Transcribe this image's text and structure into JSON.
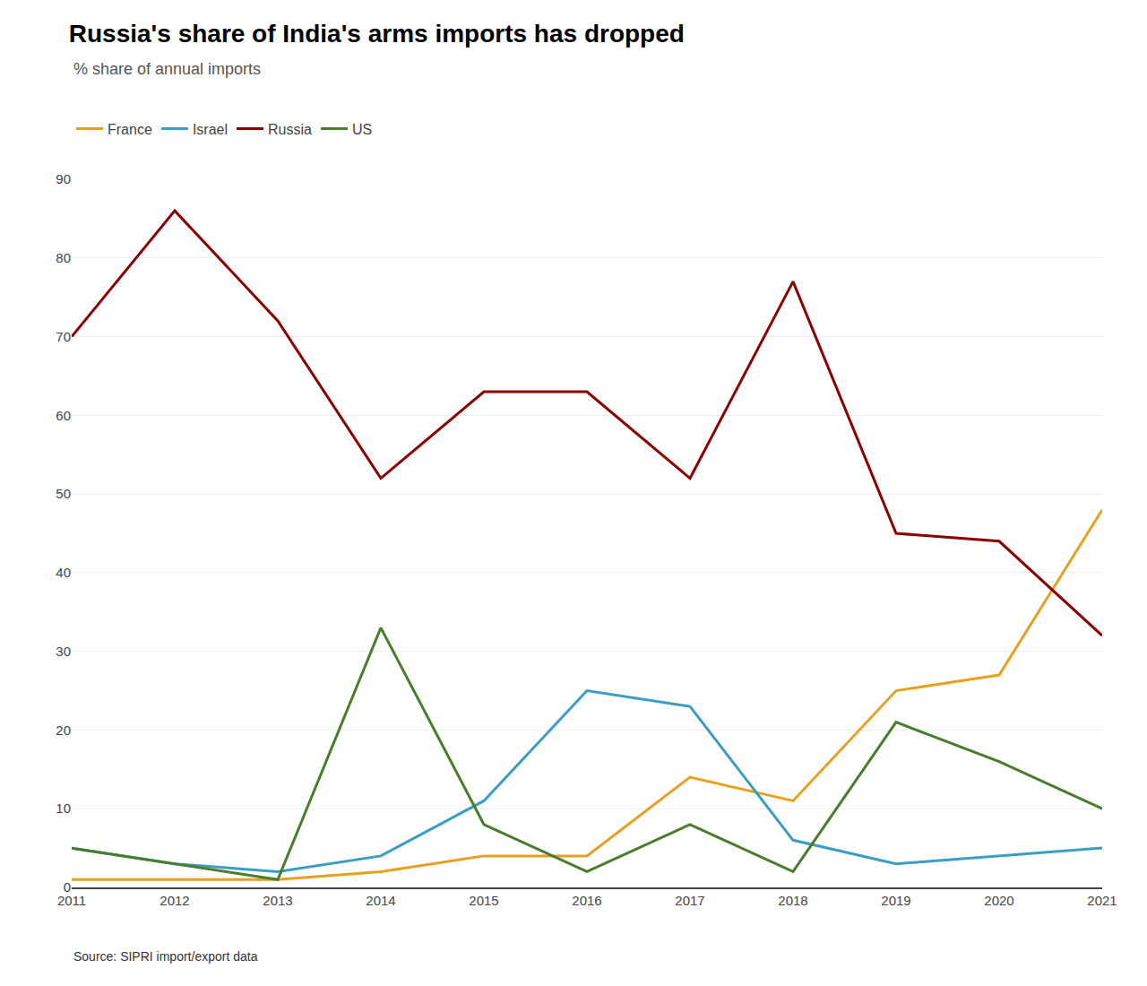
{
  "chart_data": {
    "type": "line",
    "title": "Russia's share of India's arms imports has dropped",
    "subtitle": "% share of annual imports",
    "annotations": [
      "Source: SIPRI import/export data"
    ],
    "x": [
      2011,
      2012,
      2013,
      2014,
      2015,
      2016,
      2017,
      2018,
      2019,
      2020,
      2021
    ],
    "series": [
      {
        "name": "France",
        "color": "#e8a020",
        "values": [
          1,
          1,
          1,
          2,
          4,
          4,
          14,
          11,
          25,
          27,
          48
        ]
      },
      {
        "name": "Israel",
        "color": "#3a9ec2",
        "values": [
          5,
          3,
          2,
          4,
          11,
          25,
          23,
          6,
          3,
          4,
          5
        ]
      },
      {
        "name": "Russia",
        "color": "#8b0000",
        "values": [
          70,
          86,
          72,
          52,
          63,
          63,
          52,
          77,
          45,
          44,
          32
        ]
      },
      {
        "name": "US",
        "color": "#4a7c2e",
        "values": [
          5,
          3,
          1,
          33,
          8,
          2,
          8,
          2,
          21,
          16,
          10
        ]
      }
    ],
    "xlim": [
      2011,
      2021
    ],
    "xticks": [
      2011,
      2012,
      2013,
      2014,
      2015,
      2016,
      2017,
      2018,
      2019,
      2020,
      2021
    ],
    "ylim": [
      0,
      90
    ],
    "yticks": [
      0,
      10,
      20,
      30,
      40,
      50,
      60,
      70,
      80,
      90
    ],
    "grid": true,
    "legend": "top"
  }
}
